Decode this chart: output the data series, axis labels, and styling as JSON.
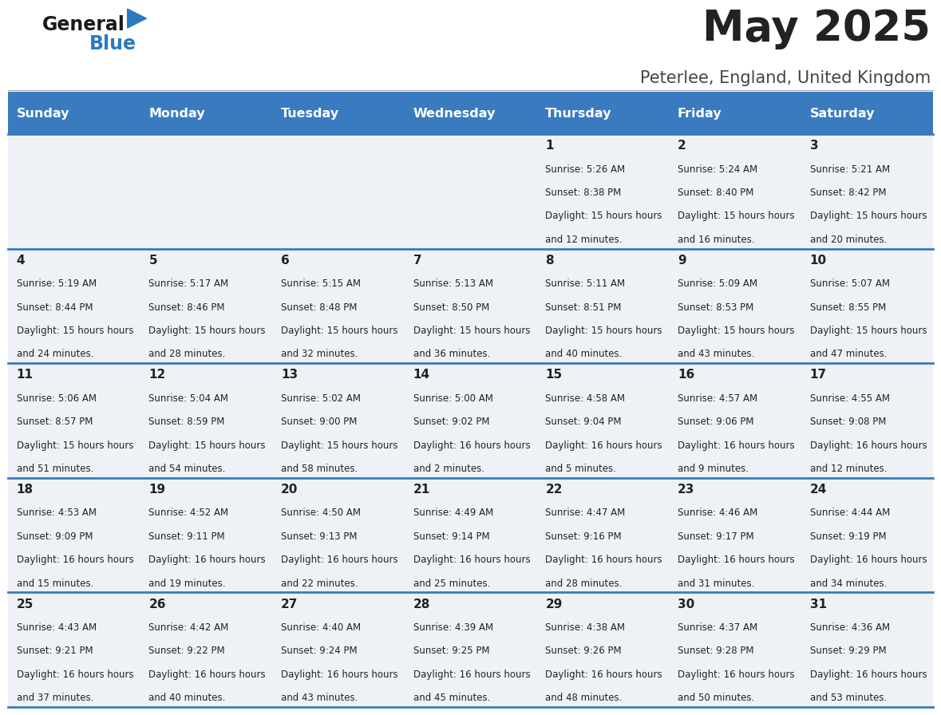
{
  "title": "May 2025",
  "subtitle": "Peterlee, England, United Kingdom",
  "days_of_week": [
    "Sunday",
    "Monday",
    "Tuesday",
    "Wednesday",
    "Thursday",
    "Friday",
    "Saturday"
  ],
  "header_bg": "#3a7bbf",
  "header_text": "#ffffff",
  "row_bg_light": "#eef2f7",
  "cell_text": "#222222",
  "divider_color": "#3a7bbf",
  "title_color": "#222222",
  "subtitle_color": "#444444",
  "calendar": [
    [
      null,
      null,
      null,
      null,
      {
        "day": 1,
        "sunrise": "5:26 AM",
        "sunset": "8:38 PM",
        "daylight": "15 hours and 12 minutes"
      },
      {
        "day": 2,
        "sunrise": "5:24 AM",
        "sunset": "8:40 PM",
        "daylight": "15 hours and 16 minutes"
      },
      {
        "day": 3,
        "sunrise": "5:21 AM",
        "sunset": "8:42 PM",
        "daylight": "15 hours and 20 minutes"
      }
    ],
    [
      {
        "day": 4,
        "sunrise": "5:19 AM",
        "sunset": "8:44 PM",
        "daylight": "15 hours and 24 minutes"
      },
      {
        "day": 5,
        "sunrise": "5:17 AM",
        "sunset": "8:46 PM",
        "daylight": "15 hours and 28 minutes"
      },
      {
        "day": 6,
        "sunrise": "5:15 AM",
        "sunset": "8:48 PM",
        "daylight": "15 hours and 32 minutes"
      },
      {
        "day": 7,
        "sunrise": "5:13 AM",
        "sunset": "8:50 PM",
        "daylight": "15 hours and 36 minutes"
      },
      {
        "day": 8,
        "sunrise": "5:11 AM",
        "sunset": "8:51 PM",
        "daylight": "15 hours and 40 minutes"
      },
      {
        "day": 9,
        "sunrise": "5:09 AM",
        "sunset": "8:53 PM",
        "daylight": "15 hours and 43 minutes"
      },
      {
        "day": 10,
        "sunrise": "5:07 AM",
        "sunset": "8:55 PM",
        "daylight": "15 hours and 47 minutes"
      }
    ],
    [
      {
        "day": 11,
        "sunrise": "5:06 AM",
        "sunset": "8:57 PM",
        "daylight": "15 hours and 51 minutes"
      },
      {
        "day": 12,
        "sunrise": "5:04 AM",
        "sunset": "8:59 PM",
        "daylight": "15 hours and 54 minutes"
      },
      {
        "day": 13,
        "sunrise": "5:02 AM",
        "sunset": "9:00 PM",
        "daylight": "15 hours and 58 minutes"
      },
      {
        "day": 14,
        "sunrise": "5:00 AM",
        "sunset": "9:02 PM",
        "daylight": "16 hours and 2 minutes"
      },
      {
        "day": 15,
        "sunrise": "4:58 AM",
        "sunset": "9:04 PM",
        "daylight": "16 hours and 5 minutes"
      },
      {
        "day": 16,
        "sunrise": "4:57 AM",
        "sunset": "9:06 PM",
        "daylight": "16 hours and 9 minutes"
      },
      {
        "day": 17,
        "sunrise": "4:55 AM",
        "sunset": "9:08 PM",
        "daylight": "16 hours and 12 minutes"
      }
    ],
    [
      {
        "day": 18,
        "sunrise": "4:53 AM",
        "sunset": "9:09 PM",
        "daylight": "16 hours and 15 minutes"
      },
      {
        "day": 19,
        "sunrise": "4:52 AM",
        "sunset": "9:11 PM",
        "daylight": "16 hours and 19 minutes"
      },
      {
        "day": 20,
        "sunrise": "4:50 AM",
        "sunset": "9:13 PM",
        "daylight": "16 hours and 22 minutes"
      },
      {
        "day": 21,
        "sunrise": "4:49 AM",
        "sunset": "9:14 PM",
        "daylight": "16 hours and 25 minutes"
      },
      {
        "day": 22,
        "sunrise": "4:47 AM",
        "sunset": "9:16 PM",
        "daylight": "16 hours and 28 minutes"
      },
      {
        "day": 23,
        "sunrise": "4:46 AM",
        "sunset": "9:17 PM",
        "daylight": "16 hours and 31 minutes"
      },
      {
        "day": 24,
        "sunrise": "4:44 AM",
        "sunset": "9:19 PM",
        "daylight": "16 hours and 34 minutes"
      }
    ],
    [
      {
        "day": 25,
        "sunrise": "4:43 AM",
        "sunset": "9:21 PM",
        "daylight": "16 hours and 37 minutes"
      },
      {
        "day": 26,
        "sunrise": "4:42 AM",
        "sunset": "9:22 PM",
        "daylight": "16 hours and 40 minutes"
      },
      {
        "day": 27,
        "sunrise": "4:40 AM",
        "sunset": "9:24 PM",
        "daylight": "16 hours and 43 minutes"
      },
      {
        "day": 28,
        "sunrise": "4:39 AM",
        "sunset": "9:25 PM",
        "daylight": "16 hours and 45 minutes"
      },
      {
        "day": 29,
        "sunrise": "4:38 AM",
        "sunset": "9:26 PM",
        "daylight": "16 hours and 48 minutes"
      },
      {
        "day": 30,
        "sunrise": "4:37 AM",
        "sunset": "9:28 PM",
        "daylight": "16 hours and 50 minutes"
      },
      {
        "day": 31,
        "sunrise": "4:36 AM",
        "sunset": "9:29 PM",
        "daylight": "16 hours and 53 minutes"
      }
    ]
  ]
}
